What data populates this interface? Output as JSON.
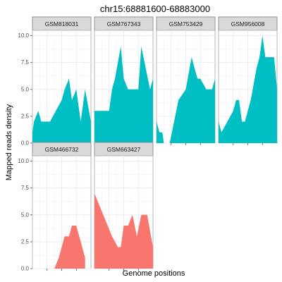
{
  "chart_data": {
    "type": "area",
    "title": "chr15:68881600-68883000",
    "xlabel": "Genome positions",
    "ylabel": "Mapped reads density",
    "ylim": [
      0,
      10.5
    ],
    "yticks": [
      0.0,
      2.5,
      5.0,
      7.5,
      10.0
    ],
    "ytick_labels": [
      "0.0",
      "2.5",
      "5.0",
      "7.5",
      "10.0"
    ],
    "xticks": [
      1,
      2,
      3
    ],
    "xlim": [
      0,
      4
    ],
    "layout": {
      "rows": 2,
      "cols": 4
    },
    "colors": {
      "group_a": "#00BFC4",
      "group_b": "#F8766D"
    },
    "panels": [
      {
        "name": "GSM818031",
        "color": "#00BFC4",
        "x": [
          0,
          0.1,
          0.4,
          0.6,
          1.0,
          1.2,
          1.6,
          2.0,
          2.2,
          2.5,
          2.7,
          3.0,
          3.3,
          3.6,
          4.0
        ],
        "y": [
          1,
          2,
          3,
          2,
          2,
          2,
          3,
          4,
          5,
          6,
          4,
          5,
          2,
          5,
          2
        ]
      },
      {
        "name": "GSM767343",
        "color": "#00BFC4",
        "x": [
          0,
          0.7,
          1.0,
          1.2,
          1.4,
          1.8,
          2.0,
          2.3,
          2.6,
          3.0,
          3.2,
          3.5,
          3.8,
          4.0
        ],
        "y": [
          3,
          3,
          3,
          5,
          6,
          9,
          6,
          5,
          5,
          5,
          9,
          7,
          5,
          6
        ]
      },
      {
        "name": "GSM753429",
        "color": "#00BFC4",
        "x": [
          0,
          0.2,
          0.4,
          0.5,
          0.7,
          0.8,
          0.9,
          1.2,
          1.5,
          2.0,
          2.4,
          2.8,
          3.0,
          3.4,
          3.8,
          4.0
        ],
        "y": [
          2,
          1,
          1,
          0,
          0,
          0,
          0,
          2,
          4,
          5,
          8,
          6,
          6,
          5,
          5,
          6
        ]
      },
      {
        "name": "GSM956008",
        "color": "#00BFC4",
        "x": [
          0,
          0.2,
          0.6,
          1.0,
          1.2,
          1.4,
          1.6,
          1.8,
          2.0,
          2.2,
          2.6,
          2.8,
          3.0,
          3.2,
          3.6,
          3.8,
          4.0
        ],
        "y": [
          2,
          1,
          2,
          3,
          4,
          4,
          2,
          2,
          3,
          4,
          7,
          8,
          10,
          8,
          8,
          8,
          5
        ]
      },
      {
        "name": "GSM466732",
        "color": "#F8766D",
        "x": [
          1.5,
          1.8,
          2.0,
          2.2,
          2.5,
          2.7,
          3.0,
          3.2,
          3.6
        ],
        "y": [
          0,
          1,
          2,
          3,
          3,
          4,
          4,
          3,
          1
        ]
      },
      {
        "name": "GSM663427",
        "color": "#F8766D",
        "x": [
          0,
          0.3,
          0.6,
          0.9,
          1.2,
          1.6,
          1.8,
          2.0,
          2.3,
          2.6,
          2.9,
          3.2,
          3.6,
          4.0
        ],
        "y": [
          7,
          6,
          5,
          4,
          3,
          2,
          2,
          4,
          4,
          5,
          3,
          5,
          5,
          2
        ]
      }
    ]
  }
}
